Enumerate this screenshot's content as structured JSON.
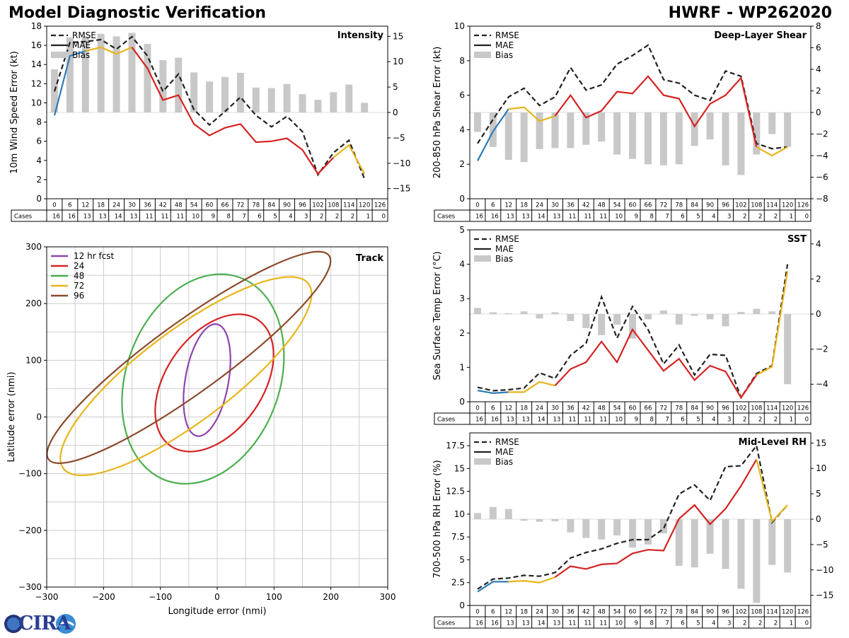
{
  "header": {
    "title": "Model Diagnostic Verification",
    "model_storm": "HWRF - WP262020"
  },
  "logo": {
    "text": "CIRA",
    "icon": "cira-logo-icon"
  },
  "colors": {
    "early": "#2e7bb6",
    "mid": "#e8b51b",
    "main": "#d62222",
    "rmse": "#222222",
    "bias": "#c8c8c8",
    "grid": "#cccccc"
  },
  "table": {
    "hours": [
      "0",
      "6",
      "12",
      "18",
      "24",
      "30",
      "36",
      "42",
      "48",
      "54",
      "60",
      "66",
      "72",
      "78",
      "84",
      "90",
      "96",
      "102",
      "108",
      "114",
      "120",
      "126"
    ],
    "cases_label": "Cases",
    "cases": [
      "16",
      "16",
      "13",
      "13",
      "14",
      "13",
      "11",
      "11",
      "11",
      "10",
      "9",
      "8",
      "7",
      "6",
      "5",
      "4",
      "3",
      "2",
      "2",
      "2",
      "1",
      "0"
    ]
  },
  "legend": {
    "rmse": "RMSE",
    "mae": "MAE",
    "bias": "Bias"
  },
  "chart_data": [
    {
      "id": "intensity",
      "type": "line",
      "title": "Intensity",
      "ylabel": "10m Wind Speed Error (kt)",
      "ylim": [
        0,
        18
      ],
      "yticks": [
        0,
        2,
        4,
        6,
        8,
        10,
        12,
        14,
        16,
        18
      ],
      "y2lim": [
        -17,
        17
      ],
      "y2ticks": [
        -15,
        -10,
        -5,
        0,
        5,
        10,
        15
      ],
      "rmse": [
        11.2,
        16.3,
        16.4,
        16.6,
        15.6,
        16.9,
        14.9,
        11.2,
        13.0,
        9.3,
        7.7,
        9.1,
        10.6,
        8.7,
        7.5,
        8.6,
        7.0,
        2.5,
        4.8,
        6.1,
        2.1
      ],
      "mae": [
        8.7,
        14.9,
        15.4,
        15.8,
        15.1,
        15.8,
        13.6,
        10.3,
        10.8,
        7.8,
        6.6,
        7.4,
        7.8,
        5.9,
        6.0,
        6.3,
        5.1,
        2.6,
        4.3,
        5.6,
        2.6
      ],
      "bias": [
        8.5,
        14.8,
        15.0,
        15.5,
        15.0,
        15.7,
        13.5,
        10.3,
        10.8,
        7.9,
        6.1,
        7.0,
        7.8,
        4.9,
        4.8,
        5.6,
        3.6,
        2.5,
        4.0,
        5.5,
        1.9
      ]
    },
    {
      "id": "shear",
      "type": "line",
      "title": "Deep-Layer Shear",
      "ylabel": "200-850 hPa Shear Error (kt)",
      "ylim": [
        0,
        10
      ],
      "yticks": [
        0,
        2,
        4,
        6,
        8,
        10
      ],
      "y2lim": [
        -8,
        8
      ],
      "y2ticks": [
        -8,
        -6,
        -4,
        -2,
        0,
        2,
        4,
        6,
        8
      ],
      "rmse": [
        3.2,
        4.6,
        5.9,
        6.4,
        5.4,
        5.9,
        7.6,
        6.3,
        6.6,
        7.8,
        8.3,
        8.9,
        6.9,
        6.7,
        6.0,
        5.7,
        7.4,
        7.1,
        3.2,
        2.9,
        3.0
      ],
      "mae": [
        2.2,
        3.9,
        5.2,
        5.3,
        4.5,
        4.8,
        6.0,
        4.7,
        5.1,
        6.2,
        6.1,
        7.1,
        6.0,
        5.8,
        4.2,
        5.5,
        6.0,
        7.0,
        3.0,
        2.5,
        3.0
      ],
      "bias": [
        -1.8,
        -3.2,
        -4.4,
        -4.6,
        -3.4,
        -3.3,
        -3.3,
        -3.0,
        -2.7,
        -3.9,
        -4.3,
        -4.8,
        -4.9,
        -4.8,
        -3.1,
        -2.5,
        -4.9,
        -5.8,
        -3.9,
        -2.0,
        -3.2
      ]
    },
    {
      "id": "sst",
      "type": "line",
      "title": "SST",
      "ylabel": "Sea Surface Temp Error (°C)",
      "ylim": [
        0,
        5
      ],
      "yticks": [
        0,
        1,
        2,
        3,
        4,
        5
      ],
      "y2lim": [
        -5,
        4.8
      ],
      "y2ticks": [
        -4,
        -2,
        0,
        2,
        4
      ],
      "rmse": [
        0.42,
        0.32,
        0.35,
        0.4,
        0.84,
        0.68,
        1.35,
        1.7,
        3.05,
        1.85,
        2.77,
        2.1,
        1.1,
        1.65,
        0.78,
        1.38,
        1.35,
        0.12,
        0.82,
        1.05,
        4.0
      ],
      "mae": [
        0.33,
        0.25,
        0.28,
        0.28,
        0.58,
        0.47,
        0.95,
        1.15,
        1.75,
        1.15,
        2.1,
        1.5,
        0.9,
        1.25,
        0.63,
        1.05,
        0.88,
        0.12,
        0.78,
        1.02,
        3.8
      ],
      "bias": [
        0.35,
        0.1,
        0.05,
        0.15,
        -0.25,
        0.1,
        -0.4,
        -0.8,
        -1.2,
        -0.6,
        -1.4,
        -0.3,
        0.2,
        -0.6,
        -0.1,
        -0.3,
        -0.7,
        0.12,
        0.3,
        0.15,
        -4.0
      ]
    },
    {
      "id": "rh",
      "type": "line",
      "title": "Mid-Level RH",
      "ylabel": "700-500 hPa RH Error (%)",
      "ylim": [
        0,
        18.9
      ],
      "yticks": [
        0.0,
        2.5,
        5.0,
        7.5,
        10.0,
        12.5,
        15.0,
        17.5
      ],
      "y2lim": [
        -17,
        17
      ],
      "y2ticks": [
        -15,
        -10,
        -5,
        0,
        5,
        10,
        15
      ],
      "rmse": [
        1.8,
        2.9,
        3.0,
        3.3,
        3.2,
        3.6,
        5.2,
        5.8,
        6.2,
        6.8,
        7.2,
        7.2,
        8.4,
        12.2,
        13.2,
        11.5,
        15.2,
        15.3,
        17.5,
        9.1,
        11.0
      ],
      "mae": [
        1.5,
        2.6,
        2.6,
        2.7,
        2.5,
        3.1,
        4.3,
        4.0,
        4.5,
        4.6,
        5.7,
        6.1,
        6.0,
        9.5,
        11.0,
        8.9,
        10.6,
        13.1,
        16.0,
        9.2,
        11.0
      ],
      "bias": [
        1.2,
        2.4,
        2.0,
        -0.3,
        -0.5,
        -0.4,
        -2.6,
        -3.7,
        -4.0,
        -3.2,
        -5.6,
        -5.0,
        -2.8,
        -9.2,
        -9.5,
        -6.8,
        -9.8,
        -13.7,
        -16.5,
        -9.0,
        -10.5
      ]
    },
    {
      "id": "track",
      "type": "line",
      "title": "Track",
      "xlabel": "Longitude error (nmi)",
      "ylabel": "Latitude error (nmi)",
      "xlim": [
        -300,
        300
      ],
      "ylim": [
        -300,
        300
      ],
      "xticks": [
        -300,
        -200,
        -100,
        0,
        100,
        200,
        300
      ],
      "yticks": [
        -300,
        -200,
        -100,
        0,
        100,
        200,
        300
      ],
      "ellipses": [
        {
          "label": "12 hr fcst",
          "color": "#8e44ad",
          "cx": -18,
          "cy": 65,
          "a": 100,
          "b": 38,
          "angle": -80
        },
        {
          "label": "24",
          "color": "#d62222",
          "cx": -5,
          "cy": 60,
          "a": 135,
          "b": 85,
          "angle": -55
        },
        {
          "label": "48",
          "color": "#4caf50",
          "cx": -25,
          "cy": 67,
          "a": 190,
          "b": 135,
          "angle": -70
        },
        {
          "label": "72",
          "color": "#e8b51b",
          "cx": -55,
          "cy": 72,
          "a": 270,
          "b": 80,
          "angle": -37
        },
        {
          "label": "96",
          "color": "#8b4a2b",
          "cx": -50,
          "cy": 105,
          "a": 305,
          "b": 62,
          "angle": -36
        }
      ]
    }
  ]
}
